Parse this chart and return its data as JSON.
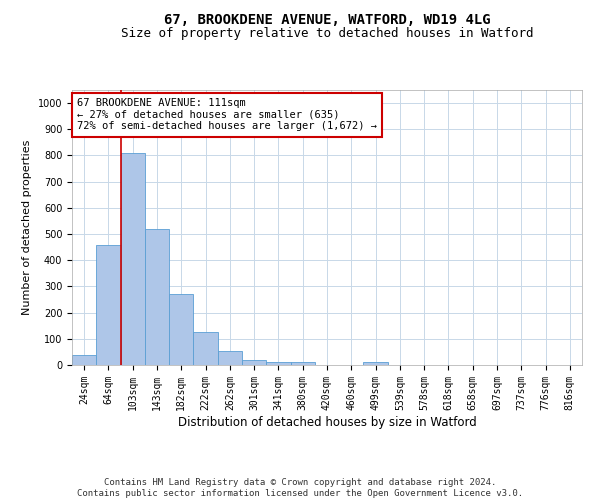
{
  "title_line1": "67, BROOKDENE AVENUE, WATFORD, WD19 4LG",
  "title_line2": "Size of property relative to detached houses in Watford",
  "xlabel": "Distribution of detached houses by size in Watford",
  "ylabel": "Number of detached properties",
  "categories": [
    "24sqm",
    "64sqm",
    "103sqm",
    "143sqm",
    "182sqm",
    "222sqm",
    "262sqm",
    "301sqm",
    "341sqm",
    "380sqm",
    "420sqm",
    "460sqm",
    "499sqm",
    "539sqm",
    "578sqm",
    "618sqm",
    "658sqm",
    "697sqm",
    "737sqm",
    "776sqm",
    "816sqm"
  ],
  "values": [
    40,
    460,
    810,
    520,
    270,
    125,
    55,
    20,
    12,
    10,
    0,
    0,
    10,
    0,
    0,
    0,
    0,
    0,
    0,
    0,
    0
  ],
  "bar_color": "#aec6e8",
  "bar_edgecolor": "#5a9fd4",
  "vline_color": "#cc0000",
  "vline_x_index": 2,
  "annotation_text": "67 BROOKDENE AVENUE: 111sqm\n← 27% of detached houses are smaller (635)\n72% of semi-detached houses are larger (1,672) →",
  "annotation_box_color": "#ffffff",
  "annotation_box_edgecolor": "#cc0000",
  "ylim": [
    0,
    1050
  ],
  "yticks": [
    0,
    100,
    200,
    300,
    400,
    500,
    600,
    700,
    800,
    900,
    1000
  ],
  "background_color": "#ffffff",
  "grid_color": "#c8d8e8",
  "footnote": "Contains HM Land Registry data © Crown copyright and database right 2024.\nContains public sector information licensed under the Open Government Licence v3.0.",
  "title_fontsize": 10,
  "subtitle_fontsize": 9,
  "xlabel_fontsize": 8.5,
  "ylabel_fontsize": 8,
  "tick_fontsize": 7,
  "annotation_fontsize": 7.5,
  "footnote_fontsize": 6.5
}
